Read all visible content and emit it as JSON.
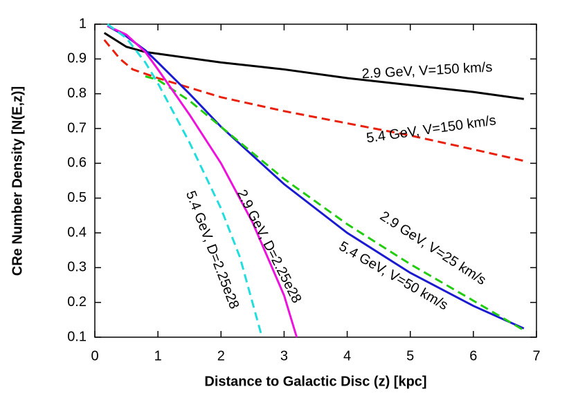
{
  "chart_data": {
    "type": "line",
    "xlabel": "Distance to Galactic Disc (z) [kpc]",
    "ylabel": "CRe Number Density [N(E,z)]",
    "xlim": [
      0,
      7
    ],
    "xticks": [
      0,
      1,
      2,
      3,
      4,
      5,
      6,
      7
    ],
    "ylim": [
      0.1,
      1
    ],
    "yticks": [
      0.1,
      0.2,
      0.3,
      0.4,
      0.5,
      0.6,
      0.7,
      0.8,
      0.9,
      1
    ],
    "series": [
      {
        "name": "2.9 GeV, V=150 km/s",
        "color": "#000000",
        "dashed": false,
        "x": [
          0.15,
          0.5,
          0.8,
          1,
          2,
          3,
          4,
          5,
          6,
          6.8
        ],
        "values": [
          0.975,
          0.935,
          0.92,
          0.915,
          0.89,
          0.87,
          0.845,
          0.825,
          0.805,
          0.785
        ]
      },
      {
        "name": "5.4 GeV, V=150 km/s",
        "color": "#e8200c",
        "dashed": true,
        "x": [
          0.15,
          0.4,
          0.6,
          1,
          2,
          3,
          4,
          5,
          6,
          6.8
        ],
        "values": [
          0.955,
          0.9,
          0.87,
          0.845,
          0.79,
          0.75,
          0.715,
          0.68,
          0.64,
          0.607
        ]
      },
      {
        "name": "2.9 GeV, V=25 km/s",
        "color": "#1a1ad0",
        "dashed": false,
        "x": [
          0.2,
          0.5,
          0.8,
          1,
          1.5,
          2,
          3,
          4,
          5,
          6,
          6.8
        ],
        "values": [
          0.995,
          0.965,
          0.925,
          0.89,
          0.8,
          0.705,
          0.54,
          0.4,
          0.285,
          0.19,
          0.125
        ]
      },
      {
        "name": "5.4 GeV, V=50 km/s",
        "color": "#22cc11",
        "dashed": true,
        "x": [
          0.8,
          1,
          1.5,
          2,
          3,
          4,
          5,
          6,
          6.8
        ],
        "values": [
          0.85,
          0.84,
          0.78,
          0.705,
          0.555,
          0.425,
          0.31,
          0.205,
          0.12
        ]
      },
      {
        "name": "2.9 GeV, D=2.25e28",
        "color": "#ee11dd",
        "dashed": false,
        "x": [
          0.2,
          0.5,
          0.8,
          1,
          1.5,
          2,
          2.5,
          3,
          3.2
        ],
        "values": [
          0.995,
          0.97,
          0.92,
          0.87,
          0.74,
          0.6,
          0.43,
          0.22,
          0.1
        ]
      },
      {
        "name": "5.4 GeV, D=2.25e28",
        "color": "#22dddd",
        "dashed": true,
        "x": [
          0.2,
          0.5,
          0.8,
          1,
          1.5,
          2,
          2.3,
          2.65
        ],
        "values": [
          1,
          0.96,
          0.89,
          0.83,
          0.66,
          0.47,
          0.33,
          0.1
        ]
      }
    ]
  }
}
